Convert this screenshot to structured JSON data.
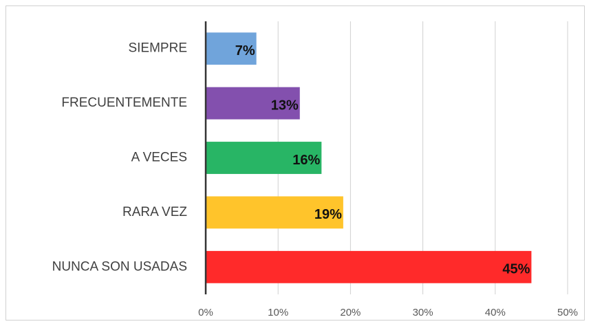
{
  "chart_data": {
    "type": "bar",
    "orientation": "horizontal",
    "categories": [
      "SIEMPRE",
      "FRECUENTEMENTE",
      "A VECES",
      "RARA VEZ",
      "NUNCA SON USADAS"
    ],
    "values": [
      7,
      13,
      16,
      19,
      45
    ],
    "value_labels": [
      "7%",
      "13%",
      "16%",
      "19%",
      "45%"
    ],
    "colors": [
      "#70a4db",
      "#8350ae",
      "#28b565",
      "#ffc42b",
      "#ff2a2a"
    ],
    "xlim": [
      0,
      50
    ],
    "xticks": [
      {
        "value": 0,
        "label": "0%"
      },
      {
        "value": 10,
        "label": "10%"
      },
      {
        "value": 20,
        "label": "20%"
      },
      {
        "value": 30,
        "label": "30%"
      },
      {
        "value": 40,
        "label": "40%"
      },
      {
        "value": 50,
        "label": "50%"
      }
    ],
    "grid": true
  }
}
